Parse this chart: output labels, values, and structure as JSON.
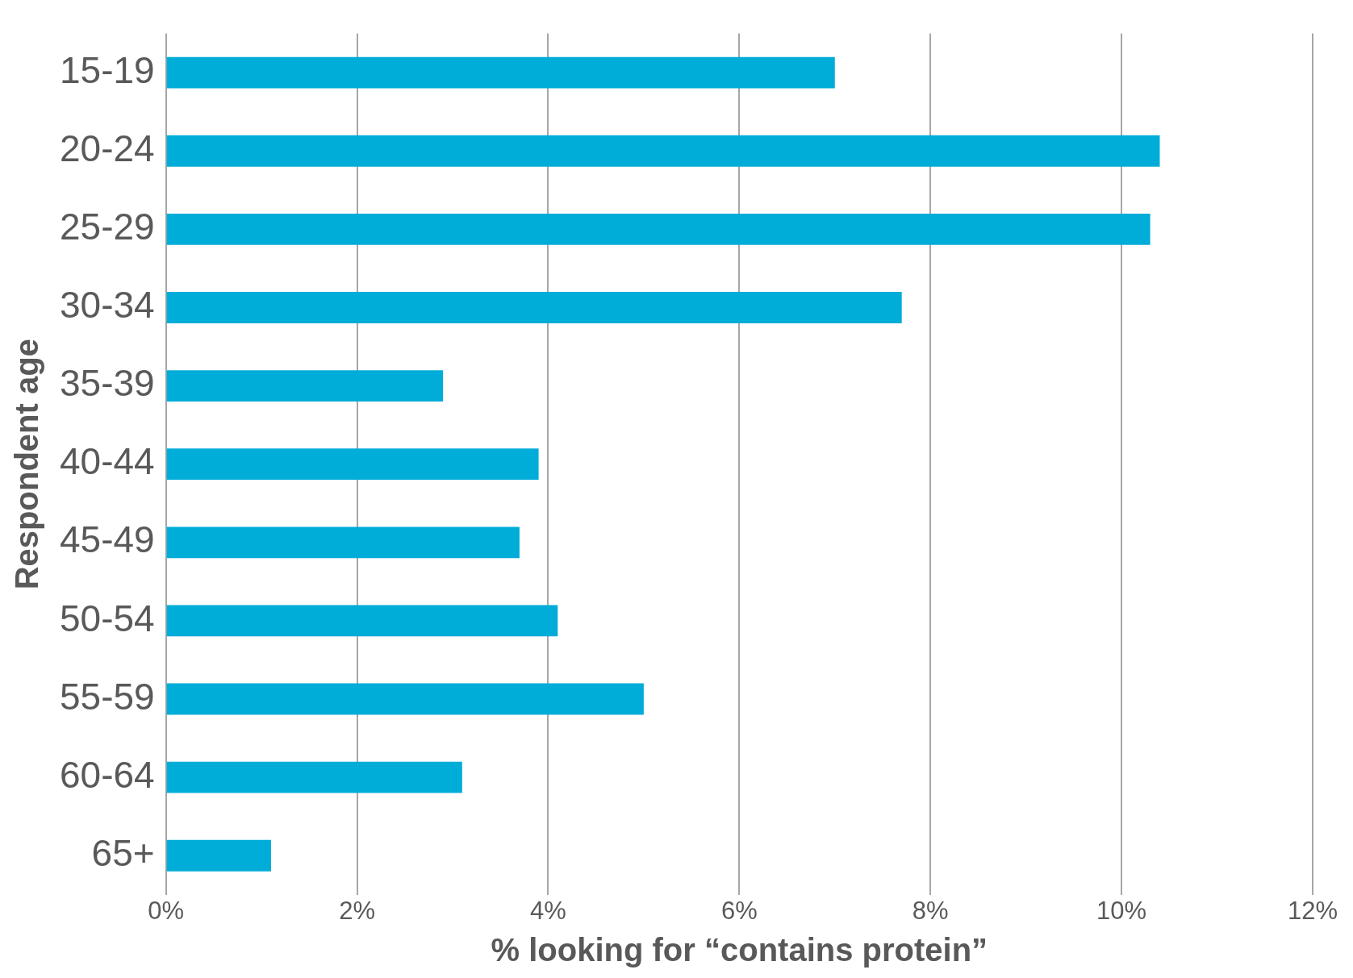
{
  "chart_data": {
    "type": "bar",
    "orientation": "horizontal",
    "xlabel": "% looking for “contains protein”",
    "ylabel": "Respondent age",
    "categories": [
      "15-19",
      "20-24",
      "25-29",
      "30-34",
      "35-39",
      "40-44",
      "45-49",
      "50-54",
      "55-59",
      "60-64",
      "65+"
    ],
    "values": [
      7.0,
      10.4,
      10.3,
      7.7,
      2.9,
      3.9,
      3.7,
      4.1,
      5.0,
      3.1,
      1.1
    ],
    "color": "#00acd8",
    "xlim": [
      0,
      12
    ],
    "xticks": [
      {
        "value": 0,
        "label": "0%"
      },
      {
        "value": 2,
        "label": "2%"
      },
      {
        "value": 4,
        "label": "4%"
      },
      {
        "value": 6,
        "label": "6%"
      },
      {
        "value": 8,
        "label": "8%"
      },
      {
        "value": 10,
        "label": "10%"
      },
      {
        "value": 12,
        "label": "12%"
      }
    ],
    "grid": "x",
    "legend": false
  }
}
